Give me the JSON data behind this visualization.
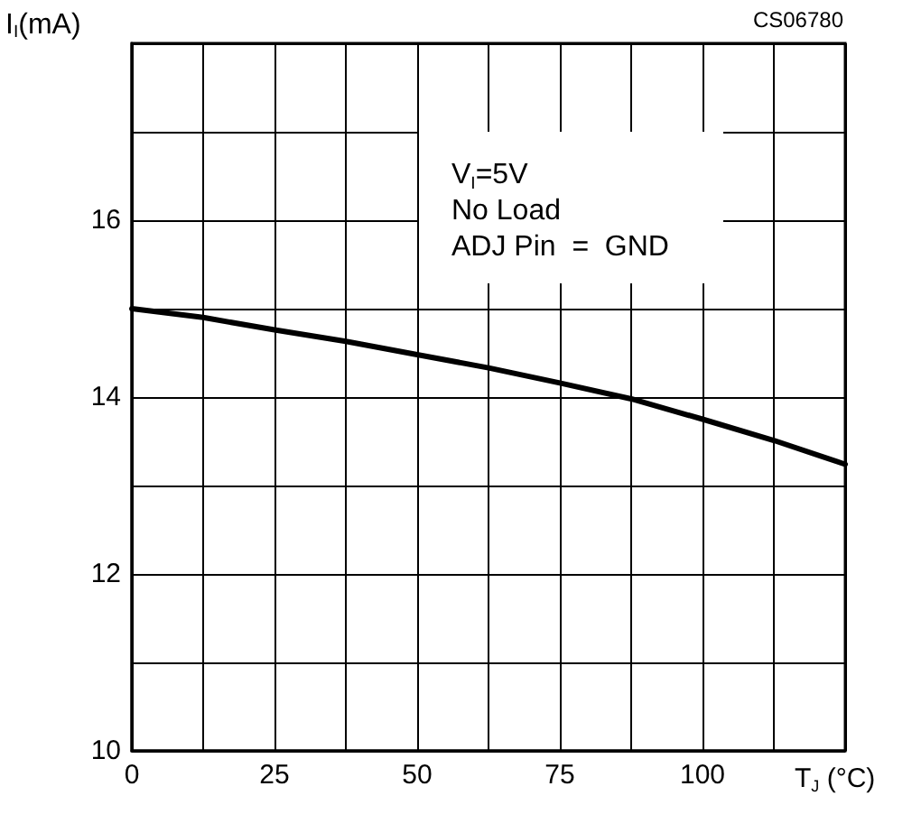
{
  "chart_data": {
    "type": "line",
    "xlabel": "T$_{J}$ (°C)",
    "ylabel": "I$_{I}$(mA)",
    "annotations": [
      "CS06780",
      "V$_{I}$=5V\nNo Load\nADJ Pin  =  GND"
    ],
    "x": [
      0,
      12.5,
      25,
      37.5,
      50,
      62.5,
      75,
      87.5,
      100,
      112.5,
      125
    ],
    "series": [
      {
        "color": "#000000",
        "values": [
          15.0,
          14.9,
          14.76,
          14.63,
          14.48,
          14.33,
          14.16,
          13.98,
          13.75,
          13.51,
          13.24
        ]
      }
    ],
    "xlim": [
      0,
      125
    ],
    "ylim": [
      10,
      18
    ],
    "xticks": [
      0,
      {
        "value": 12.5,
        "label": null
      },
      25,
      {
        "value": 37.5,
        "label": null
      },
      50,
      {
        "value": 62.5,
        "label": null
      },
      75,
      {
        "value": 87.5,
        "label": null
      },
      100,
      {
        "value": 112.5,
        "label": null
      },
      {
        "value": 125,
        "label": null
      }
    ],
    "yticks": [
      10,
      {
        "value": 11,
        "label": null
      },
      12,
      {
        "value": 13,
        "label": null
      },
      14,
      {
        "value": 15,
        "label": null
      },
      16,
      {
        "value": 17,
        "label": null
      },
      {
        "value": 18,
        "label": null
      }
    ],
    "grid": true,
    "marker": "none",
    "line_style": "solid"
  }
}
